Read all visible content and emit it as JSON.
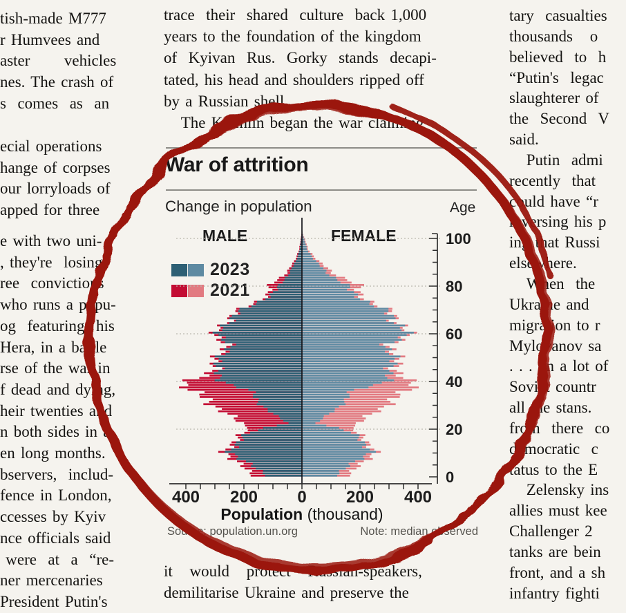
{
  "page": {
    "background": "#f5f3ee",
    "ink_color": "#151412"
  },
  "annotation": {
    "kind": "hand-drawn-circle",
    "color": "#9b150e"
  },
  "left_column": {
    "para1": [
      "tish-made M777",
      "r Humvees and",
      "aster      vehicles",
      "nes. The crash of",
      "s  comes  as  an"
    ],
    "para2": [
      "ecial operations",
      "hange of corpses",
      "our lorryloads of",
      "apped for three"
    ],
    "para3": [
      "e with two uni-",
      ", they're  losing",
      "ree  convictions",
      "who runs a popu-",
      "og  featuring  his",
      "Hera, in a battle",
      "rse of the war in",
      "f dead and dying,",
      "heir twenties and",
      "n both sides in a",
      "en long months.",
      "bservers,  includ-",
      "fence in London,",
      "ccesses by Kyiv",
      "nce officials said",
      " were  at  a  “re-",
      "ner mercenaries",
      "President Putin's"
    ]
  },
  "top_middle_column": {
    "lines": [
      "trace  their  shared  culture  back 1,000",
      "years to the foundation of the kingdom",
      "of  Kyivan  Rus.  Gorky  stands  decapi-",
      "tated, his head and shoulders ripped off",
      "by a Russian shell.",
      "   The Kremlin began the war claiming"
    ]
  },
  "bottom_middle_column": {
    "lines": [
      "it   would   protect   Russian-speakers,",
      "demilitarise Ukraine and preserve the"
    ]
  },
  "right_column": {
    "lines": [
      "tary  casualties",
      "thousands   o",
      "believed  to  h",
      "“Putin's  legac",
      "slaughterer of",
      "the  Second  V",
      "said.",
      "   Putin  admi",
      "recently  that",
      "could have “r",
      "reversing his p",
      "ing that Russi",
      "elsewhere.",
      "   When  the",
      "Ukraine and ",
      "migration to r",
      "Mylovanov sa",
      ". . . on a lot of ",
      "Soviet countr",
      "all the stans. ",
      "from  there  co",
      "democratic  c",
      "tatus to the E",
      "   Zelensky ins",
      "allies must kee",
      "Challenger 2 ",
      "tanks are bein",
      "front, and a sh",
      "infantry fighti"
    ]
  },
  "chart": {
    "title": "War of attrition",
    "subtitle": "Change in population",
    "age_axis_label": "Age",
    "male_label": "MALE",
    "female_label": "FEMALE",
    "legend": [
      {
        "label": "2023",
        "swatch_dark": "#2d5f74",
        "swatch_light": "#5e8aa2"
      },
      {
        "label": "2021",
        "swatch_dark": "#c30c33",
        "swatch_light": "#e27a81"
      }
    ],
    "xlabel_bold": "Population",
    "xlabel_rest": " (thousand)",
    "source": "Source: population.un.org",
    "note": "Note: median observed"
  },
  "chart_data": {
    "type": "bar",
    "subtype": "population-pyramid",
    "title": "War of attrition",
    "subtitle": "Change in population",
    "xlabel": "Population (thousand)",
    "ylabel": "Age",
    "legend_position": "upper-left",
    "grid": "dashed horizontal at ages 20,40,60,80,100",
    "x_axis": {
      "min": -400,
      "max": 400,
      "tick_step": 50,
      "labels": [
        "400",
        "200",
        "0",
        "200",
        "400"
      ],
      "label_positions": [
        -400,
        -200,
        0,
        200,
        400
      ]
    },
    "age_axis": {
      "label": "Age",
      "min": 0,
      "max": 103,
      "tick_step": 5,
      "labeled_ticks": [
        0,
        20,
        40,
        60,
        80,
        100
      ]
    },
    "sample_ages": [
      0,
      5,
      10,
      15,
      18,
      20,
      22,
      25,
      28,
      32,
      36,
      38,
      40,
      42,
      45,
      50,
      55,
      58,
      62,
      65,
      70,
      75,
      78,
      80,
      85,
      90,
      95,
      100,
      103
    ],
    "series": [
      {
        "name": "Male 2021",
        "side": "left",
        "color": "#c30c33",
        "values": [
          160,
          225,
          260,
          240,
          200,
          170,
          215,
          250,
          280,
          330,
          395,
          400,
          370,
          340,
          310,
          285,
          270,
          285,
          295,
          262,
          205,
          130,
          105,
          110,
          55,
          25,
          10,
          3,
          0
        ]
      },
      {
        "name": "Male 2023",
        "side": "left",
        "color": "#2d5f74",
        "values": [
          115,
          190,
          240,
          225,
          180,
          120,
          50,
          90,
          120,
          160,
          185,
          240,
          270,
          295,
          300,
          270,
          255,
          270,
          285,
          255,
          195,
          120,
          85,
          75,
          45,
          20,
          8,
          2,
          0
        ]
      },
      {
        "name": "Female 2021",
        "side": "right",
        "color": "#e27a81",
        "values": [
          150,
          215,
          245,
          230,
          190,
          160,
          200,
          235,
          265,
          315,
          380,
          375,
          355,
          345,
          335,
          320,
          315,
          350,
          365,
          335,
          282,
          215,
          185,
          195,
          110,
          55,
          22,
          7,
          0
        ]
      },
      {
        "name": "Female 2023",
        "side": "right",
        "color": "#5e8aa2",
        "values": [
          110,
          180,
          230,
          215,
          170,
          115,
          50,
          85,
          115,
          155,
          180,
          250,
          285,
          305,
          315,
          305,
          300,
          340,
          355,
          325,
          270,
          200,
          160,
          150,
          90,
          45,
          18,
          5,
          0
        ]
      }
    ],
    "source": "Source: population.un.org",
    "note": "Note: median observed"
  }
}
